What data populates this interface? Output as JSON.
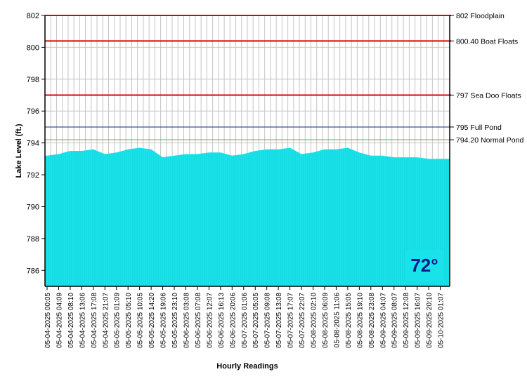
{
  "chart_data": {
    "type": "area",
    "xlabel": "Hourly Readings",
    "ylabel": "Lake Level (ft.)",
    "ylim": [
      785,
      802
    ],
    "yticks": [
      786,
      788,
      790,
      792,
      794,
      796,
      798,
      800,
      802
    ],
    "grid": true,
    "x_tick_labels": [
      "05-04-2025 00:05",
      "05-04-2025 04:09",
      "05-04-2025 08:10",
      "05-04-2025 13:06",
      "05-04-2025 17:08",
      "05-04-2025 21:07",
      "05-05-2025 01:09",
      "05-05-2025 05:10",
      "05-05-2025 10:05",
      "05-05-2025 14:20",
      "05-05-2025 19:06",
      "05-05-2025 23:10",
      "05-06-2025 03:08",
      "05-06-2025 07:08",
      "05-06-2025 12:07",
      "05-06-2025 16:13",
      "05-06-2025 20:06",
      "05-07-2025 01:06",
      "05-07-2025 05:05",
      "05-07-2025 09:08",
      "05-07-2025 13:08",
      "05-07-2025 17:07",
      "05-07-2025 22:07",
      "05-08-2025 02:10",
      "05-08-2025 06:09",
      "05-08-2025 11:06",
      "05-08-2025 15:05",
      "05-08-2025 19:10",
      "05-08-2025 23:08",
      "05-09-2025 04:07",
      "05-09-2025 08:07",
      "05-09-2025 12:08",
      "05-09-2025 16:07",
      "05-09-2025 20:10",
      "05-10-2025 01:07"
    ],
    "series": [
      {
        "color": "#19e3ea",
        "values": [
          793.2,
          793.3,
          793.5,
          793.5,
          793.6,
          793.3,
          793.4,
          793.6,
          793.7,
          793.6,
          793.1,
          793.2,
          793.3,
          793.3,
          793.4,
          793.4,
          793.2,
          793.3,
          793.5,
          793.6,
          793.6,
          793.7,
          793.3,
          793.4,
          793.6,
          793.6,
          793.7,
          793.4,
          793.2,
          793.2,
          793.1,
          793.1,
          793.1,
          793.0,
          793.0
        ]
      }
    ],
    "reference_lines": [
      {
        "value": 802,
        "label": "802 Floodplain",
        "color": "#e00000"
      },
      {
        "value": 800.4,
        "label": "800.40 Boat Floats",
        "color": "#e00000"
      },
      {
        "value": 797,
        "label": "797 Sea Doo Floats",
        "color": "#e00000"
      },
      {
        "value": 795,
        "label": "795 Full Pond",
        "color": "#1a237e"
      },
      {
        "value": 794.2,
        "label": "794.20 Normal Pond",
        "color": "#4caf50"
      }
    ],
    "annotation": {
      "text": "72°",
      "text_color": "#0a1a8c",
      "background": "#19e3ea"
    }
  }
}
